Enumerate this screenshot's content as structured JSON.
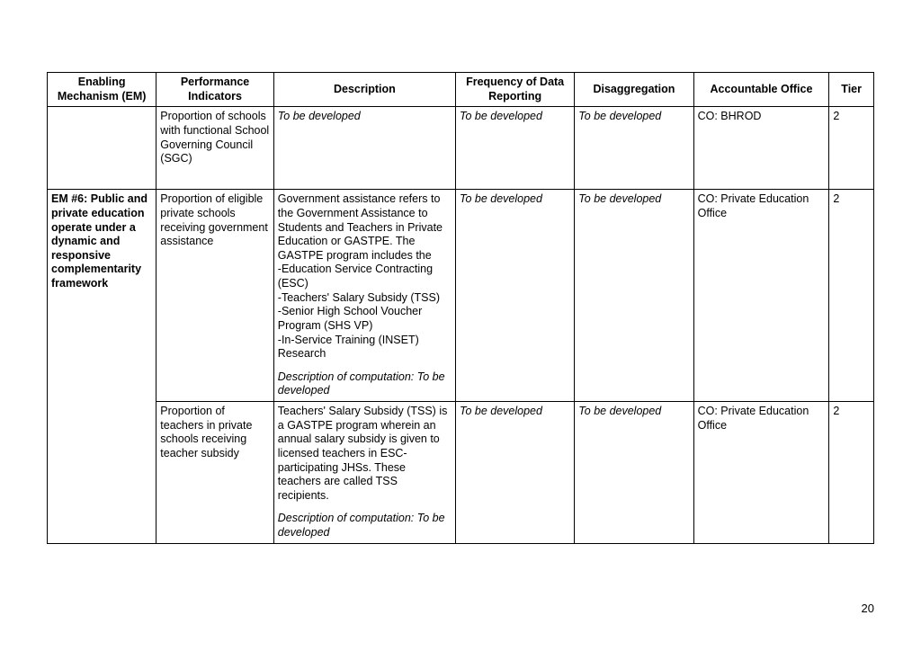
{
  "table": {
    "headers": {
      "em": "Enabling Mechanism (EM)",
      "pi": "Performance Indicators",
      "desc": "Description",
      "freq": "Frequency of Data Reporting",
      "dis": "Disaggregation",
      "acc": "Accountable Office",
      "tier": "Tier"
    },
    "rows": {
      "r0": {
        "em": "",
        "pi": "Proportion of schools with functional School Governing Council (SGC)",
        "desc_main": "To be developed",
        "freq": "To be developed",
        "dis": "To be developed",
        "acc": "CO: BHROD",
        "tier": "2"
      },
      "r1": {
        "em": "EM #6: Public and private education operate under a dynamic and responsive complementarity framework",
        "pi": "Proportion of eligible private schools receiving government assistance",
        "desc_p1": "Government assistance refers to the Government Assistance to Students and Teachers in Private Education or GASTPE. The GASTPE program includes the",
        "desc_b1": "-Education Service Contracting (ESC)",
        "desc_b2": "-Teachers' Salary Subsidy (TSS)",
        "desc_b3": "-Senior High School Voucher Program (SHS VP)",
        "desc_b4": "-In-Service Training (INSET) Research",
        "desc_comp": "Description of computation: To be developed",
        "freq": "To be developed",
        "dis": "To be developed",
        "acc": "CO: Private Education Office",
        "tier": "2"
      },
      "r2": {
        "pi": "Proportion of teachers in private schools receiving teacher subsidy",
        "desc_p1": "Teachers' Salary Subsidy (TSS) is a GASTPE program wherein an annual salary subsidy is given to licensed teachers in ESC-participating JHSs. These teachers are called TSS recipients.",
        "desc_comp": "Description of computation: To be developed",
        "freq": "To be developed",
        "dis": "To be developed",
        "acc": "CO: Private Education Office",
        "tier": "2"
      }
    }
  },
  "page_number": "20"
}
